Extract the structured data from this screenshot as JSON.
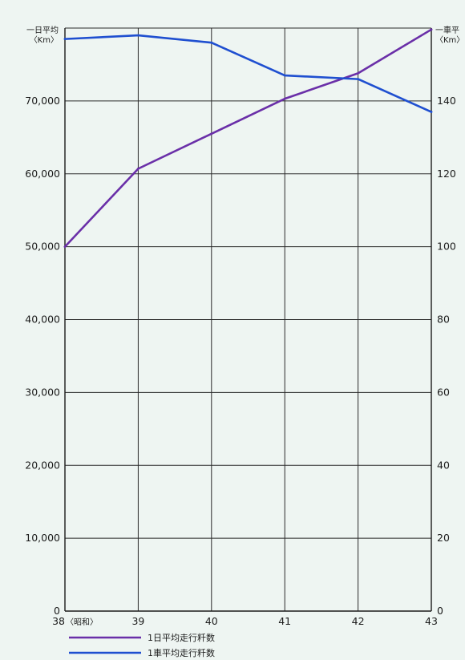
{
  "chart_data": {
    "type": "line",
    "left_axis": {
      "title_line1": "一日平均",
      "title_line2": "〈Km〉",
      "ylim": [
        0,
        80000
      ],
      "ticks": [
        "0",
        "10,000",
        "20,000",
        "30,000",
        "40,000",
        "50,000",
        "60,000",
        "70,000"
      ]
    },
    "right_axis": {
      "title_line1": "一車平",
      "title_line2": "〈Km〉",
      "ylim": [
        0,
        160
      ],
      "ticks": [
        "0",
        "20",
        "40",
        "60",
        "80",
        "100",
        "120",
        "140"
      ]
    },
    "x": [
      "38",
      "39",
      "40",
      "41",
      "42",
      "43"
    ],
    "x_first_suffix": "〈昭和〉",
    "grid": true,
    "series": [
      {
        "name": "1日平均走行粁数",
        "axis": "left",
        "color": "#6a2fa8",
        "values": [
          50000,
          60700,
          65500,
          70300,
          73800,
          79800
        ]
      },
      {
        "name": "1車平均走行粁数",
        "axis": "right",
        "color": "#1f4fd0",
        "values": [
          157,
          158,
          156,
          147,
          146,
          137
        ]
      }
    ]
  }
}
